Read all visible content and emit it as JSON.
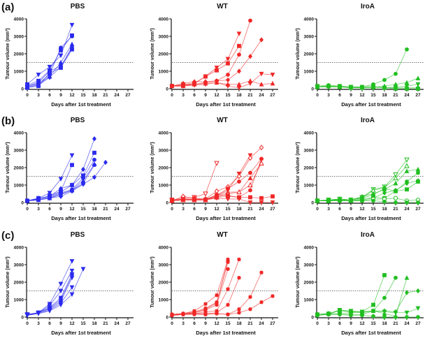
{
  "chart_data": {
    "type": "line",
    "xlabel": "Days after 1st treatment",
    "ylabel": "Tumour volume (mm³)",
    "xticks": [
      "0",
      "3",
      "6",
      "9",
      "12",
      "15",
      "18",
      "21",
      "24",
      "27"
    ],
    "yticks": [
      "0",
      "1000",
      "2000",
      "3000",
      "4000"
    ],
    "xlim": [
      0,
      27
    ],
    "ylim": [
      0,
      4000
    ],
    "threshold": 1500,
    "colors": {
      "PBS": "#2b2bee",
      "WT": "#f02828",
      "IroA": "#22bf22"
    },
    "rows": [
      {
        "label": "(a)",
        "panels": [
          {
            "title": "PBS",
            "series": [
              {
                "m": "tdown",
                "y": [
                  250,
                  800,
                  1250,
                  1900,
                  3650
                ]
              },
              {
                "m": "square",
                "y": [
                  200,
                  450,
                  1050,
                  2200,
                  3050
                ]
              },
              {
                "m": "circle",
                "y": [
                  150,
                  300,
                  800,
                  2350,
                  3000
                ]
              },
              {
                "m": "tup",
                "y": [
                  100,
                  250,
                  700,
                  1500,
                  2550
                ]
              },
              {
                "m": "diamond",
                "y": [
                  100,
                  200,
                  650,
                  1250,
                  2400
                ]
              },
              {
                "m": "square",
                "y": [
                  50,
                  150,
                  900,
                  1200,
                  2250
                ]
              },
              {
                "m": "circle",
                "y": [
                  150,
                  350,
                  1000,
                  1300,
                  2300
                ]
              }
            ]
          },
          {
            "title": "WT",
            "series": [
              {
                "m": "tdown",
                "y": [
                  150,
                  250,
                  300,
                  700,
                  1200,
                  1700,
                  3150
                ]
              },
              {
                "m": "square",
                "y": [
                  150,
                  200,
                  300,
                  700,
                  1050,
                  1450,
                  2450
                ]
              },
              {
                "m": "circle",
                "y": [
                  150,
                  200,
                  250,
                  350,
                  450,
                  800,
                  1950,
                  3900
                ]
              },
              {
                "m": "diamond",
                "y": [
                  150,
                  300,
                  400,
                  400,
                  450,
                  500,
                  1000,
                  1850,
                  2800
                ]
              },
              {
                "m": "tdown",
                "y": [
                  150,
                  150,
                  200,
                  250,
                  350,
                  150,
                  50,
                  300,
                  850,
                  800
                ]
              },
              {
                "m": "tup",
                "y": [
                  150,
                  150,
                  250,
                  300,
                  350,
                  250,
                  250,
                  450,
                  250,
                  300
                ]
              }
            ]
          },
          {
            "title": "IroA",
            "series": [
              {
                "m": "circle",
                "y": [
                  150,
                  200,
                  150,
                  100,
                  100,
                  250,
                  500,
                  850,
                  2250
                ]
              },
              {
                "m": "tup",
                "y": [
                  100,
                  150,
                  100,
                  50,
                  50,
                  100,
                  150,
                  250,
                  350,
                  600
                ]
              },
              {
                "m": "tdown",
                "y": [
                  100,
                  100,
                  100,
                  100,
                  50,
                  50,
                  50,
                  100,
                  150,
                  250
                ]
              },
              {
                "m": "square",
                "y": [
                  150,
                  150,
                  150,
                  100,
                  100,
                  150,
                  50,
                  0,
                  0,
                  0
                ]
              },
              {
                "m": "diamond",
                "y": [
                  100,
                  100,
                  100,
                  50,
                  50,
                  50,
                  50,
                  50,
                  50,
                  50
                ]
              }
            ]
          }
        ]
      },
      {
        "label": "(b)",
        "panels": [
          {
            "title": "PBS",
            "series": [
              {
                "m": "tdown",
                "y": [
                  100,
                  250,
                  550,
                  1350,
                  2700
                ]
              },
              {
                "m": "square",
                "y": [
                  100,
                  200,
                  400,
                  650,
                  2150
                ]
              },
              {
                "m": "diamond",
                "y": [
                  100,
                  250,
                  350,
                  800,
                  1000,
                  1900,
                  3650
                ]
              },
              {
                "m": "square",
                "y": [
                  100,
                  200,
                  350,
                  600,
                  1000,
                  1550,
                  2850
                ]
              },
              {
                "m": "circle",
                "y": [
                  100,
                  150,
                  300,
                  550,
                  750,
                  1400,
                  2450
                ]
              },
              {
                "m": "tup",
                "y": [
                  100,
                  150,
                  250,
                  450,
                  700,
                  1250,
                  2200
                ]
              },
              {
                "m": "circle",
                "y": [
                  100,
                  150,
                  250,
                  500,
                  700,
                  1100,
                  2150
                ]
              },
              {
                "m": "diamond",
                "y": [
                  100,
                  150,
                  250,
                  350,
                  650,
                  1050,
                  1450,
                  2300
                ]
              }
            ]
          },
          {
            "title": "WT",
            "series": [
              {
                "m": "tdown",
                "open": true,
                "x": [
                  0,
                  3,
                  6,
                  9,
                  12
                ],
                "y": [
                  150,
                  250,
                  300,
                  500,
                  2250
                ]
              },
              {
                "m": "tdown",
                "y": [
                  150,
                  200,
                  200,
                  150,
                  400,
                  700,
                  1650,
                  2700
                ]
              },
              {
                "m": "diamond",
                "open": true,
                "y": [
                  100,
                  350,
                  250,
                  200,
                  650,
                  900,
                  1500,
                  2550,
                  3150
                ]
              },
              {
                "m": "circle",
                "y": [
                  100,
                  200,
                  200,
                  200,
                  400,
                  800,
                  1200,
                  1700,
                  2500
                ]
              },
              {
                "m": "tup",
                "y": [
                  100,
                  150,
                  200,
                  150,
                  350,
                  600,
                  600,
                  1400,
                  2250
                ]
              },
              {
                "m": "tup",
                "open": true,
                "y": [
                  100,
                  150,
                  150,
                  150,
                  300,
                  500,
                  600,
                  1000,
                  2250
                ]
              },
              {
                "m": "circle",
                "y": [
                  100,
                  150,
                  150,
                  150,
                  450,
                  400,
                  300,
                  700,
                  2500
                ]
              },
              {
                "m": "square",
                "y": [
                  100,
                  150,
                  150,
                  150,
                  300,
                  350,
                  300,
                  300,
                  250,
                  350
                ]
              },
              {
                "m": "tdown",
                "y": [
                  100,
                  150,
                  150,
                  150,
                  250,
                  200,
                  200,
                  0,
                  0,
                  0
                ]
              }
            ]
          },
          {
            "title": "IroA",
            "series": [
              {
                "m": "tdown",
                "open": true,
                "y": [
                  100,
                  150,
                  200,
                  150,
                  300,
                  750,
                  900,
                  1600,
                  2450
                ]
              },
              {
                "m": "tup",
                "open": true,
                "y": [
                  100,
                  100,
                  200,
                  150,
                  250,
                  700,
                  850,
                  1400,
                  2100
                ]
              },
              {
                "m": "tup",
                "y": [
                  100,
                  150,
                  200,
                  150,
                  350,
                  500,
                  750,
                  1100,
                  1800,
                  1900
                ]
              },
              {
                "m": "circle",
                "y": [
                  100,
                  150,
                  150,
                  150,
                  250,
                  450,
                  800,
                  650,
                  1200,
                  1700
                ]
              },
              {
                "m": "square",
                "y": [
                  100,
                  100,
                  150,
                  100,
                  200,
                  300,
                  250,
                  650,
                  750,
                  1200
                ]
              },
              {
                "m": "diamond",
                "y": [
                  100,
                  100,
                  150,
                  100,
                  150,
                  250,
                  550,
                  700,
                  1100,
                  1250
                ]
              },
              {
                "m": "circle",
                "open": true,
                "y": [
                  100,
                  100,
                  100,
                  100,
                  100,
                  200,
                  200,
                  250,
                  100,
                  150
                ]
              },
              {
                "m": "circle",
                "y": [
                  100,
                  100,
                  100,
                  100,
                  100,
                  100,
                  50,
                  0,
                  0,
                  0
                ]
              }
            ]
          }
        ]
      },
      {
        "label": "(c)",
        "panels": [
          {
            "title": "PBS",
            "series": [
              {
                "m": "tdown",
                "y": [
                  150,
                  250,
                  750,
                  1900,
                  3200
                ]
              },
              {
                "m": "tdown",
                "y": [
                  150,
                  250,
                  650,
                  1500,
                  2650
                ]
              },
              {
                "m": "tdown",
                "y": [
                  150,
                  250,
                  550,
                  1100,
                  2450
                ]
              },
              {
                "m": "tdown",
                "y": [
                  100,
                  250,
                  500,
                  1000,
                  2350
                ]
              },
              {
                "m": "tdown",
                "y": [
                  150,
                  250,
                  450,
                  900,
                  2250
                ]
              },
              {
                "m": "tdown",
                "y": [
                  100,
                  200,
                  400,
                  800,
                  1700
                ]
              },
              {
                "m": "tdown",
                "y": [
                  100,
                  200,
                  350,
                  700,
                  1300,
                  2750
                ]
              }
            ]
          },
          {
            "title": "WT",
            "series": [
              {
                "m": "star",
                "y": [
                  150,
                  200,
                  350,
                  750,
                  1250,
                  3300
                ]
              },
              {
                "m": "star",
                "y": [
                  150,
                  200,
                  300,
                  500,
                  850,
                  3200
                ]
              },
              {
                "m": "star",
                "y": [
                  150,
                  150,
                  250,
                  450,
                  800,
                  3150
                ]
              },
              {
                "m": "star",
                "y": [
                  150,
                  200,
                  250,
                  400,
                  700,
                  2750
                ]
              },
              {
                "m": "star",
                "y": [
                  100,
                  150,
                  200,
                  300,
                  350,
                  1600,
                  3300
                ]
              },
              {
                "m": "star",
                "y": [
                  100,
                  150,
                  200,
                  200,
                  250,
                  700,
                  2250
                ]
              },
              {
                "m": "star",
                "y": [
                  100,
                  150,
                  200,
                  150,
                  200,
                  150,
                  450,
                  1150,
                  2550
                ]
              },
              {
                "m": "star",
                "y": [
                  100,
                  150,
                  150,
                  150,
                  200,
                  150,
                  250,
                  450,
                  850,
                  1200
                ]
              }
            ]
          },
          {
            "title": "IroA",
            "series": [
              {
                "m": "square",
                "y": [
                  150,
                  200,
                  400,
                  300,
                  300,
                  700,
                  2400
                ]
              },
              {
                "m": "circle",
                "y": [
                  150,
                  150,
                  200,
                  250,
                  300,
                  350,
                  1100,
                  2250
                ]
              },
              {
                "m": "tup",
                "y": [
                  150,
                  200,
                  350,
                  300,
                  250,
                  350,
                  200,
                  50,
                  2250
                ]
              },
              {
                "m": "diamond",
                "y": [
                  150,
                  200,
                  150,
                  150,
                  150,
                  350,
                  350,
                  300,
                  1400,
                  1500
                ]
              },
              {
                "m": "tdown",
                "y": [
                  100,
                  150,
                  400,
                  350,
                  300,
                  350,
                  300,
                  250,
                  250,
                  500
                ]
              },
              {
                "m": "circle",
                "y": [
                  100,
                  150,
                  150,
                  100,
                  100,
                  50,
                  0,
                  0,
                  0,
                  0
                ]
              }
            ]
          }
        ]
      }
    ]
  }
}
